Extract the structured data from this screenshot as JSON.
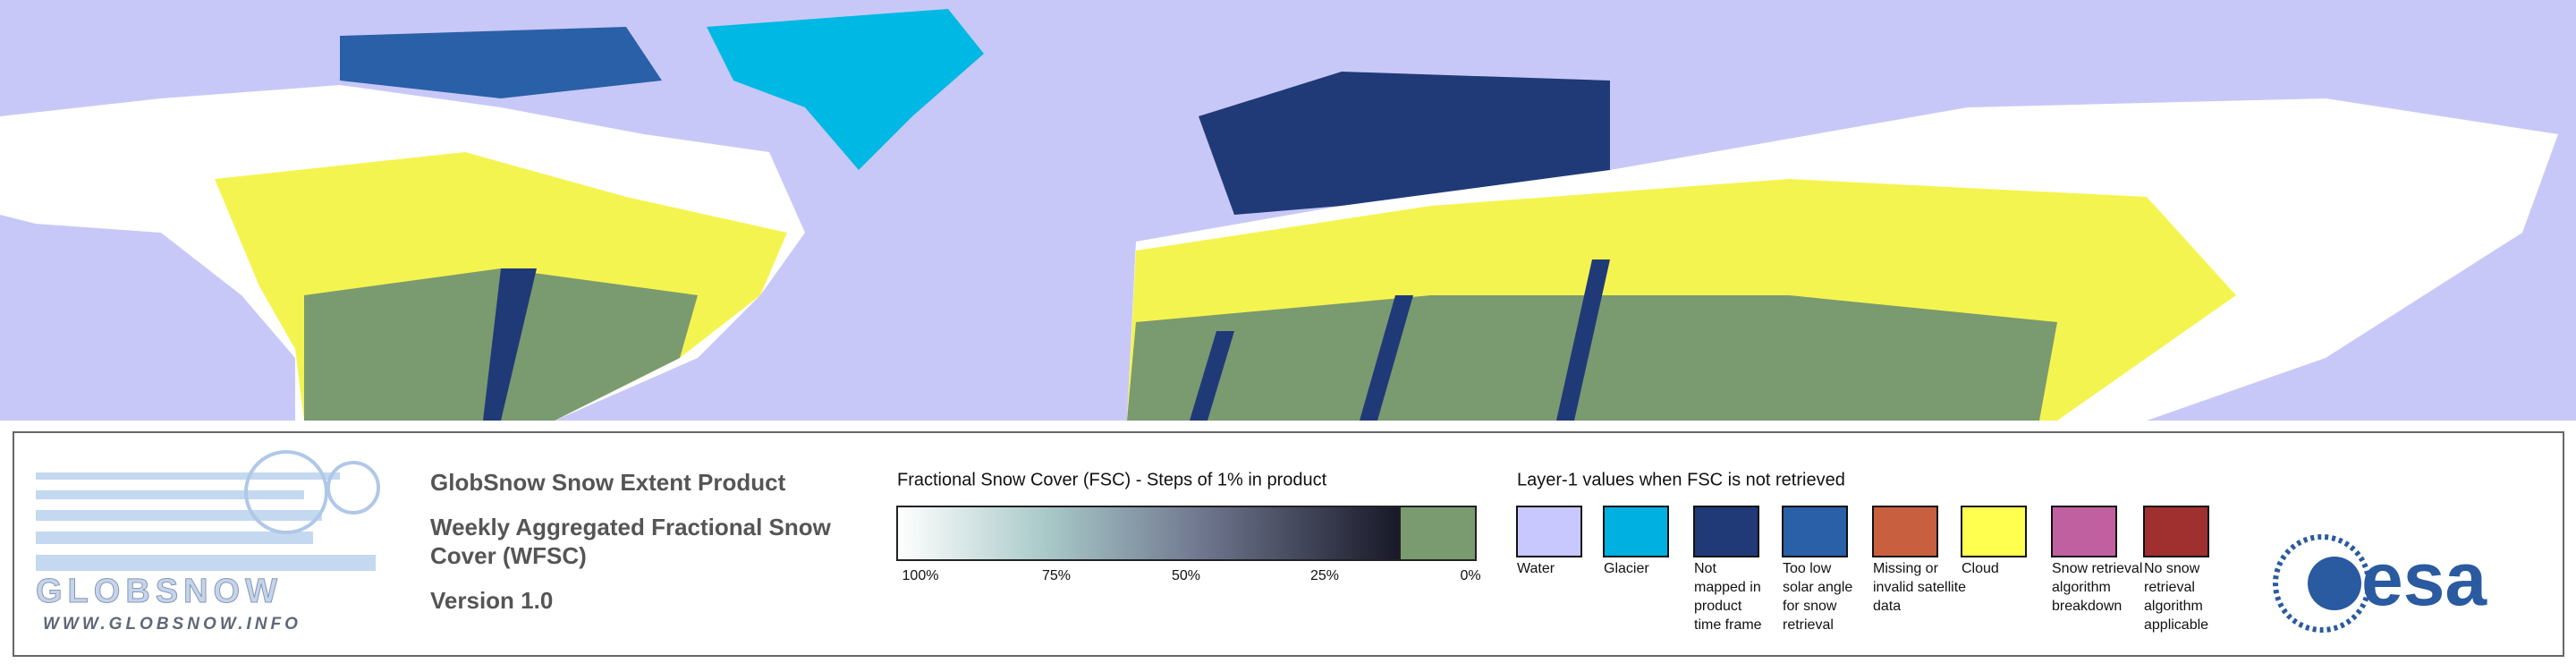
{
  "logo": {
    "name": "GLOBSNOW",
    "url": "WWW.GLOBSNOW.INFO"
  },
  "header": {
    "product": "GlobSnow Snow Extent Product",
    "subtitle_lines": [
      "Weekly Aggregated Fractional Snow",
      "Cover (WFSC)"
    ],
    "version": "Version 1.0"
  },
  "fsc_scale": {
    "title": "Fractional Snow Cover (FSC) - Steps of 1% in product",
    "ticks": [
      "100%",
      "75%",
      "50%",
      "25%",
      "0%"
    ]
  },
  "layer1": {
    "title": "Layer-1 values when FSC is not retrieved",
    "items": [
      {
        "color": "#c8c8ff",
        "lines": [
          "Water"
        ]
      },
      {
        "color": "#00b0e0",
        "lines": [
          "Glacier"
        ]
      },
      {
        "color": "#203a78",
        "lines": [
          "Not",
          "mapped in",
          "product",
          "time frame"
        ]
      },
      {
        "color": "#2a60a8",
        "lines": [
          "Too low",
          "solar angle",
          "for snow",
          "retrieval"
        ]
      },
      {
        "color": "#c86040",
        "lines": [
          "Missing or",
          "invalid satellite",
          "data"
        ]
      },
      {
        "color": "#ffff50",
        "lines": [
          "Cloud"
        ]
      },
      {
        "color": "#c060a0",
        "lines": [
          "Snow retrieval",
          "algorithm",
          "breakdown"
        ]
      },
      {
        "color": "#a03030",
        "lines": [
          "No snow",
          "retrieval",
          "algorithm",
          "applicable"
        ]
      }
    ]
  },
  "agency": "esa"
}
